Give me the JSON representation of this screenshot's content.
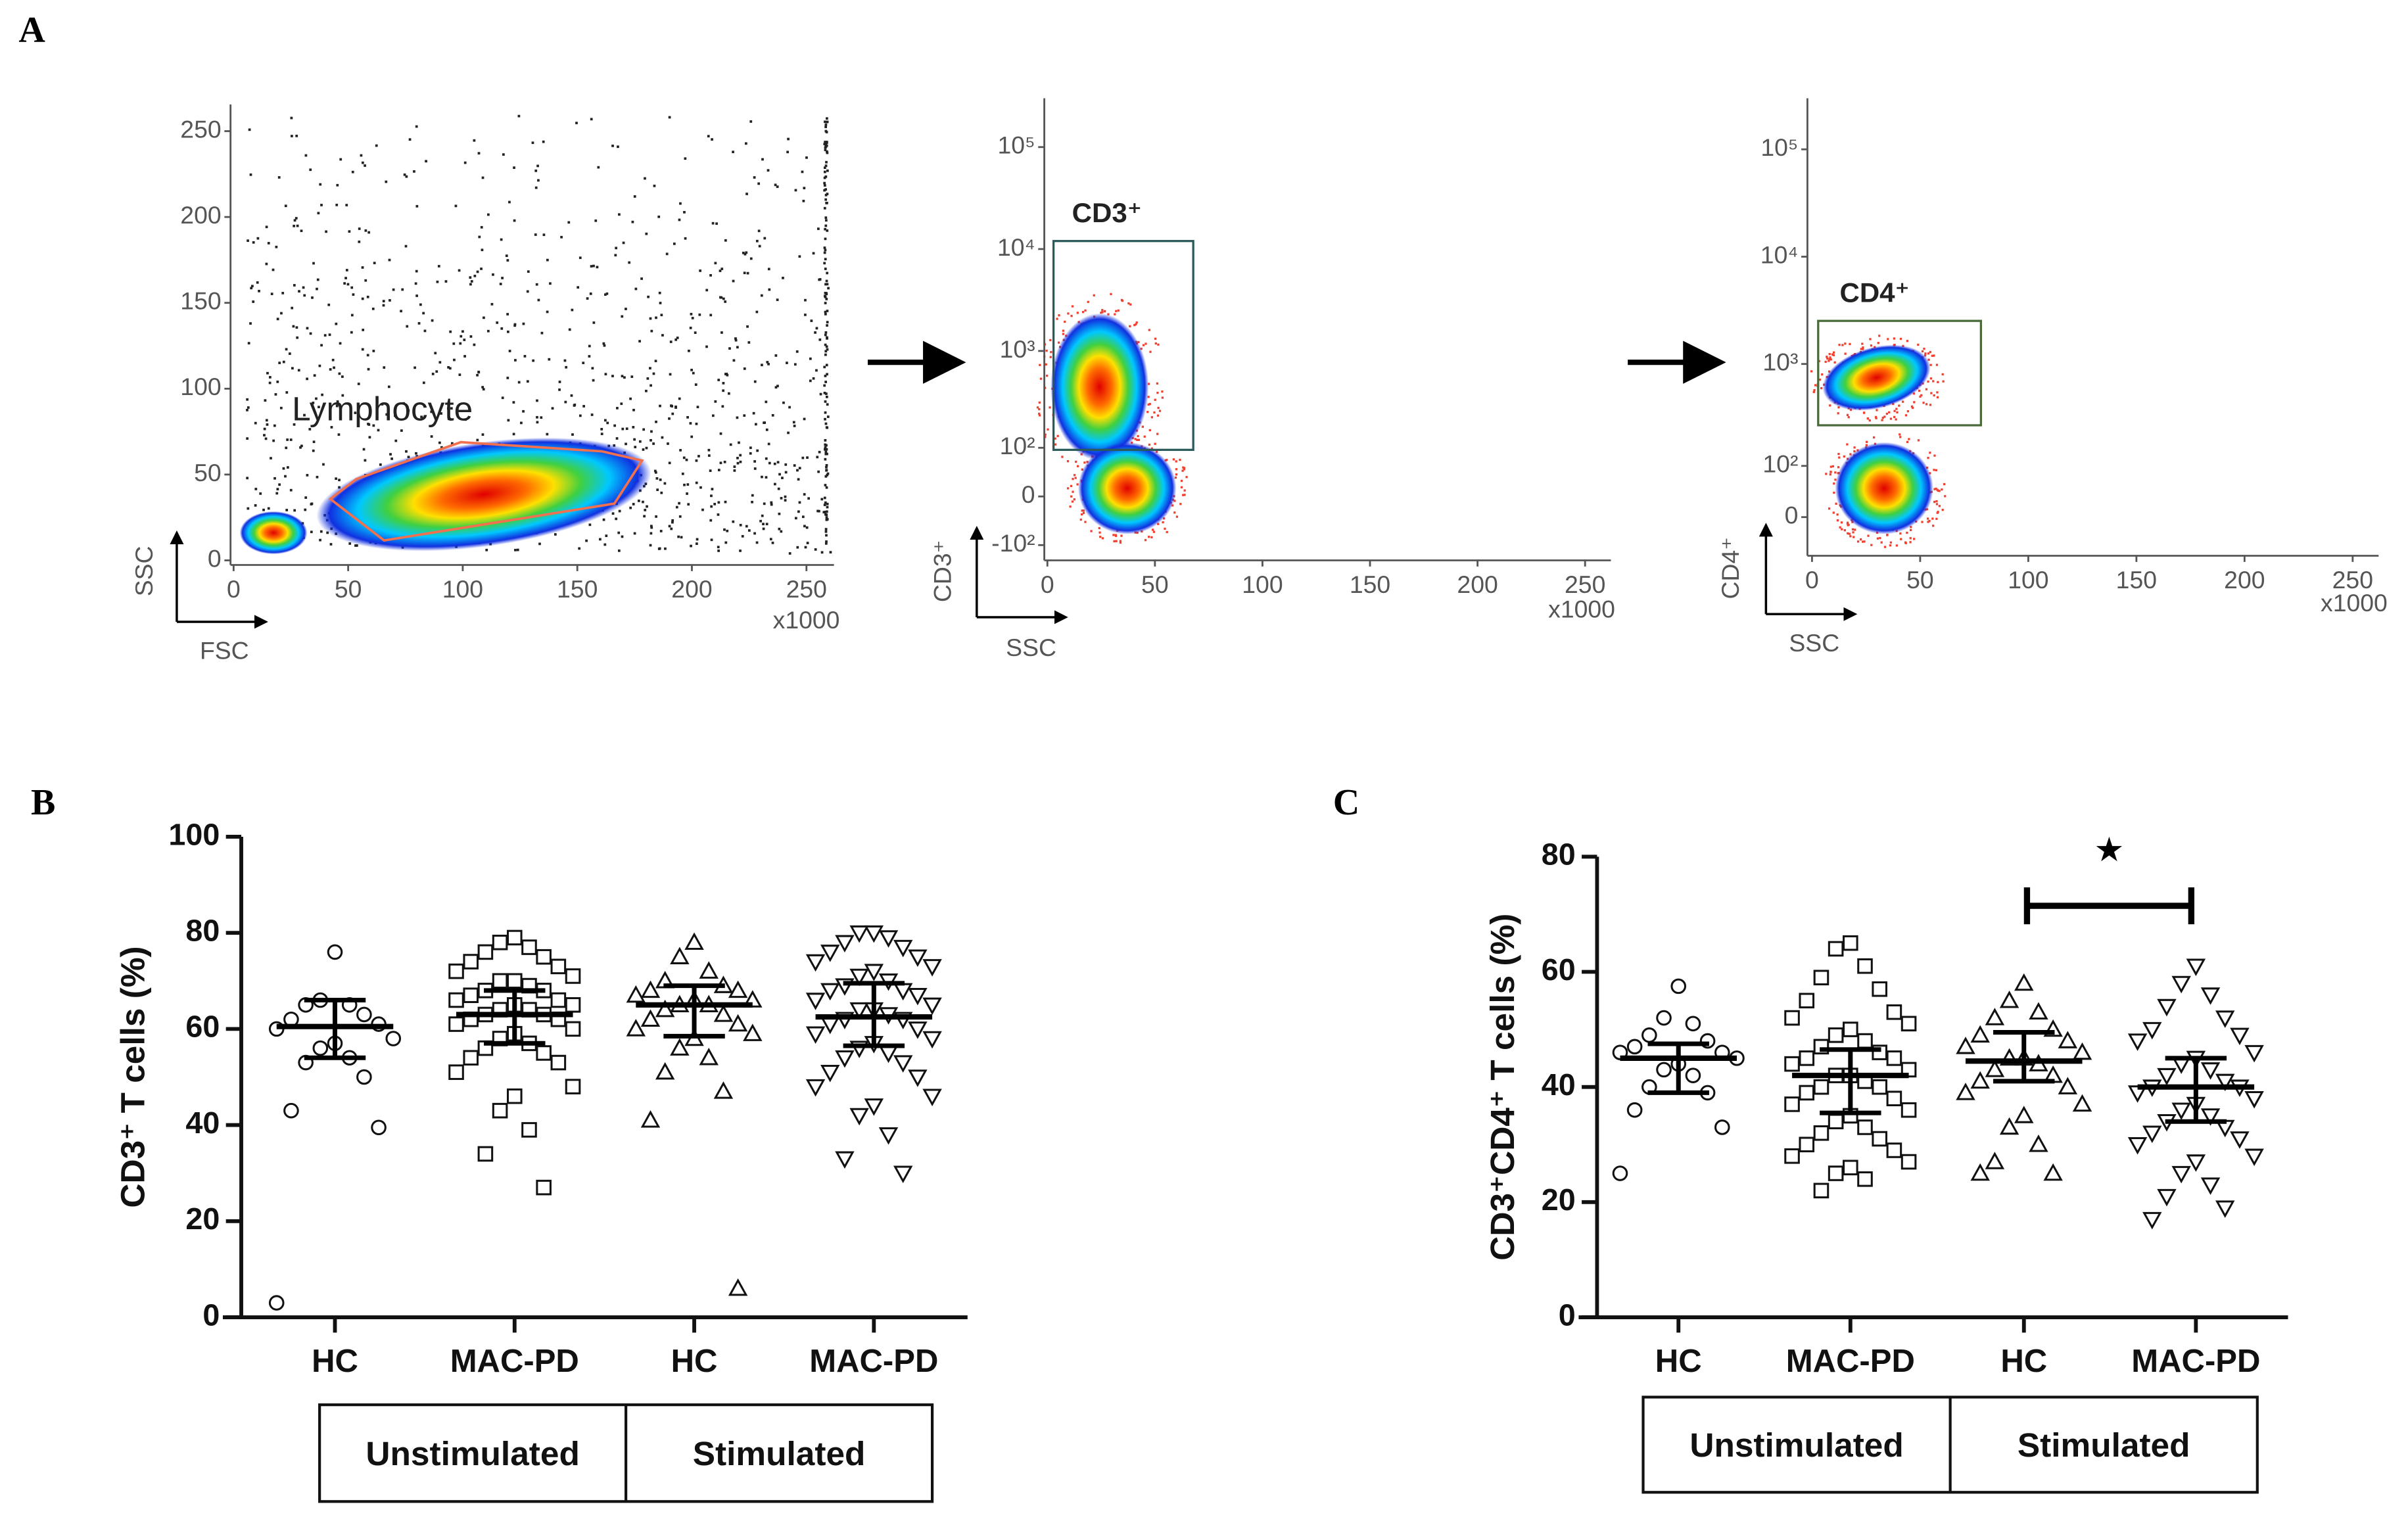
{
  "panel_labels": [
    "A",
    "B",
    "C"
  ],
  "chart_data": [
    {
      "type": "flow-density",
      "x_label": "FSC",
      "y_label": "SSC",
      "x_multiplier": "x1000",
      "gate_label": "Lymphocyte",
      "xlim": [
        0,
        262
      ],
      "xticks": [
        0,
        50,
        100,
        150,
        200,
        250
      ],
      "ylim": [
        0,
        262
      ],
      "yticks": [
        0,
        50,
        100,
        150,
        200,
        250
      ]
    },
    {
      "type": "flow-density",
      "x_label": "SSC",
      "y_label": "CD3⁺",
      "x_multiplier": "x1000",
      "gate_label": "CD3⁺",
      "xlim": [
        0,
        262
      ],
      "xticks": [
        0,
        50,
        100,
        150,
        200,
        250
      ],
      "ylim": [
        -150,
        262144
      ],
      "y_scale": "biexponential",
      "yticks": [
        {
          "value": -100,
          "label": "-10²"
        },
        0,
        {
          "value": 100,
          "label": "10²"
        },
        {
          "value": 1000,
          "label": "10³"
        },
        {
          "value": 10000,
          "label": "10⁴"
        },
        {
          "value": 100000,
          "label": "10⁵"
        }
      ]
    },
    {
      "type": "flow-density",
      "x_label": "SSC",
      "y_label": "CD4⁺",
      "x_multiplier": "x1000",
      "gate_label": "CD4⁺",
      "xlim": [
        0,
        262
      ],
      "xticks": [
        0,
        50,
        100,
        150,
        200,
        250
      ],
      "ylim": [
        -80,
        262144
      ],
      "y_scale": "biexponential",
      "yticks": [
        0,
        {
          "value": 100,
          "label": "10²"
        },
        {
          "value": 1000,
          "label": "10³"
        },
        {
          "value": 10000,
          "label": "10⁴"
        },
        {
          "value": 100000,
          "label": "10⁵"
        }
      ]
    },
    {
      "type": "dot-plot",
      "y_label": "CD3⁺ T cells (%)",
      "ylim": [
        0,
        100
      ],
      "yticks": [
        0,
        20,
        40,
        60,
        80,
        100
      ],
      "categories": [
        "HC",
        "MAC-PD",
        "HC",
        "MAC-PD"
      ],
      "group_labels": [
        "Unstimulated",
        "Stimulated"
      ],
      "markers": [
        "circle",
        "square",
        "triangle-up",
        "triangle-down"
      ],
      "medians": [
        60.5,
        63,
        65,
        62.5
      ],
      "q1": [
        54,
        57,
        58.5,
        56.5
      ],
      "q3": [
        66,
        68,
        69,
        69.5
      ],
      "points": [
        [
          76,
          66,
          65,
          65,
          63,
          62,
          61,
          60,
          58,
          57,
          56,
          54,
          53,
          50,
          43,
          39.5,
          3
        ],
        [
          79,
          78,
          77,
          76,
          75,
          74,
          73,
          72,
          71,
          70,
          70,
          69,
          68,
          68,
          67,
          66,
          66,
          65,
          65,
          64,
          64,
          63,
          63,
          62,
          62,
          61,
          60,
          59,
          58,
          57,
          56,
          55,
          54,
          53,
          51,
          48,
          46,
          43,
          39,
          34,
          27
        ],
        [
          78,
          75,
          72,
          70,
          69,
          68,
          68,
          67,
          66,
          66,
          65,
          65,
          64,
          63,
          62,
          61,
          60,
          59,
          58,
          56,
          54,
          51,
          47,
          41,
          6
        ],
        [
          80,
          80,
          79,
          78,
          77,
          76,
          75,
          74,
          73,
          72,
          71,
          70,
          69,
          68,
          68,
          67,
          66,
          65,
          64,
          64,
          63,
          62,
          62,
          61,
          60,
          59,
          58,
          57,
          56,
          55,
          54,
          53,
          51,
          50,
          48,
          46,
          44,
          42,
          38,
          33,
          30
        ]
      ]
    },
    {
      "type": "dot-plot",
      "y_label": "CD3⁺CD4⁺ T cells (%)",
      "ylim": [
        0,
        80
      ],
      "yticks": [
        0,
        20,
        40,
        60,
        80
      ],
      "categories": [
        "HC",
        "MAC-PD",
        "HC",
        "MAC-PD"
      ],
      "group_labels": [
        "Unstimulated",
        "Stimulated"
      ],
      "markers": [
        "circle",
        "square",
        "triangle-up",
        "triangle-down"
      ],
      "significance": "★",
      "medians": [
        45,
        42,
        44.5,
        40
      ],
      "q1": [
        39,
        35.5,
        41,
        34
      ],
      "q3": [
        47.5,
        46.5,
        49.5,
        45
      ],
      "points": [
        [
          57.5,
          52,
          51,
          49,
          48,
          47,
          46,
          46,
          45,
          44,
          43,
          42,
          40,
          39,
          36,
          33,
          25
        ],
        [
          65,
          64,
          61,
          59,
          57,
          55,
          53,
          52,
          51,
          50,
          49,
          48,
          47,
          46,
          45,
          45,
          44,
          43,
          42,
          42,
          41,
          40,
          40,
          39,
          38,
          37,
          36,
          35,
          34,
          33,
          32,
          31,
          30,
          29,
          28,
          27,
          26,
          25,
          24,
          22
        ],
        [
          58,
          55,
          53,
          52,
          50,
          49,
          48,
          47,
          46,
          45,
          45,
          44,
          43,
          42,
          41,
          40,
          39,
          37,
          35,
          33,
          30,
          27,
          25,
          25
        ],
        [
          61,
          58,
          56,
          54,
          52,
          50,
          49,
          48,
          46,
          45,
          44,
          43,
          42,
          41,
          40,
          40,
          39,
          38,
          37,
          36,
          35,
          34,
          33,
          32,
          31,
          30,
          28,
          27,
          25,
          23,
          21,
          19,
          17
        ]
      ]
    }
  ]
}
